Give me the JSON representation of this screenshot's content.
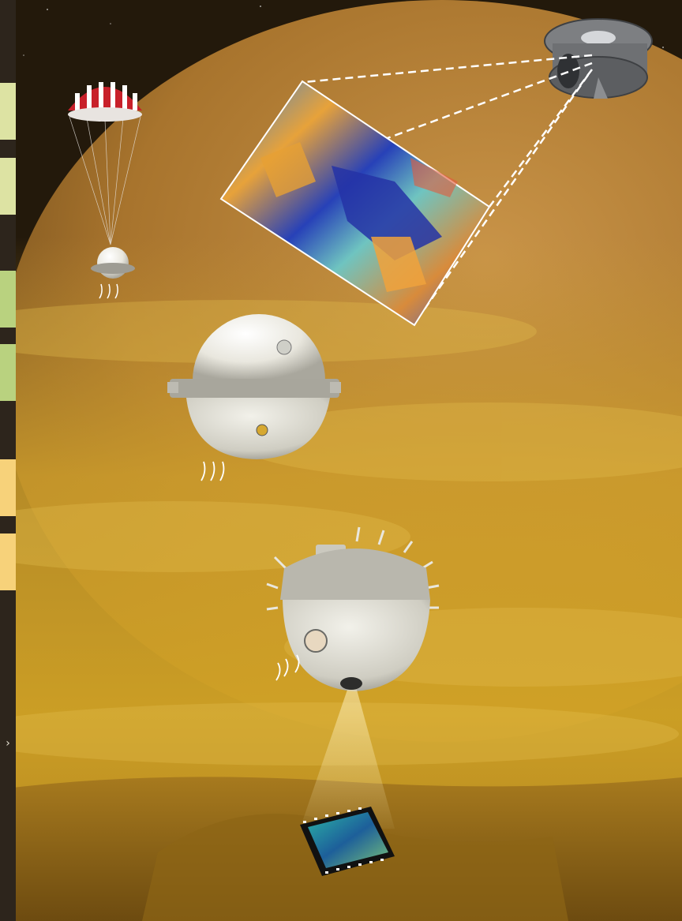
{
  "scene": {
    "description_free": true,
    "sidebar": {
      "swatches": [
        {
          "color": "#dde3a3"
        },
        {
          "color": "#dde3a3"
        },
        {
          "color": "#b9d27f"
        },
        {
          "color": "#b9d27f"
        },
        {
          "color": "#f7d27a"
        },
        {
          "color": "#f7d27a"
        }
      ],
      "expand_icon": "chevron-right-icon",
      "expand_glyph": "›"
    },
    "colors": {
      "sky_top": "#2a1d0c",
      "planet_limb": "#c08a3a",
      "haze": "#d9a72a",
      "haze_light": "#e6c352",
      "surface": "#8a6418",
      "probe_white": "#ecebe4",
      "probe_grey": "#b7b5aa",
      "chute_red": "#c8202a",
      "scan_line": "#ffffff"
    }
  }
}
